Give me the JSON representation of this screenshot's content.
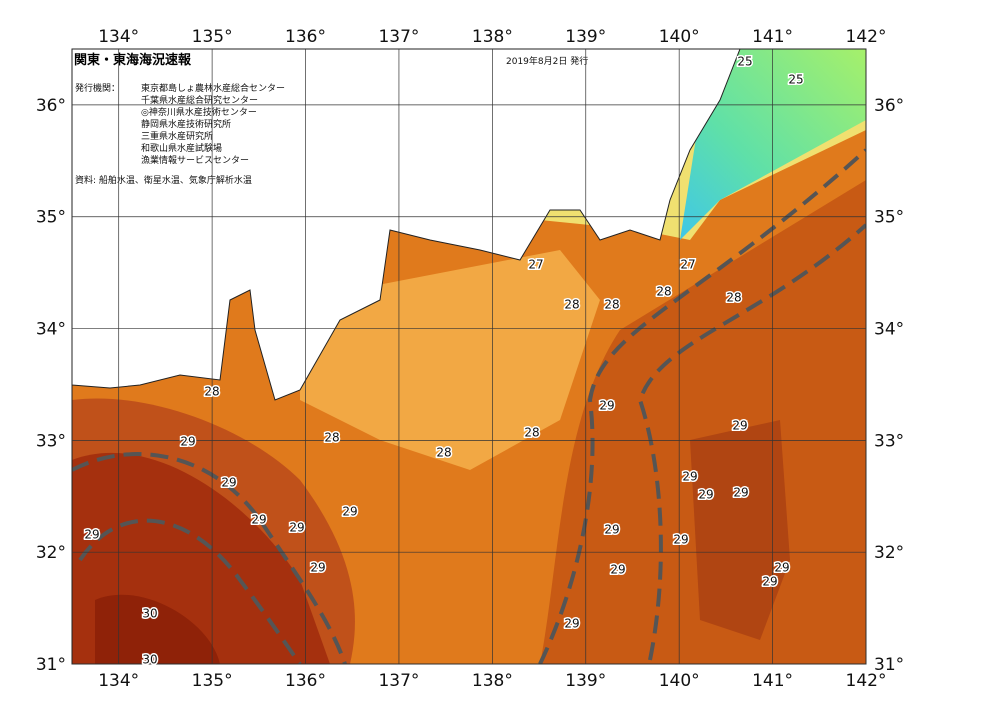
{
  "header": {
    "title": "関東・東海海況速報",
    "date": "2019年8月2日 発行",
    "issuer_label": "発行機関：",
    "issuers": [
      "東京都島しょ農林水産総合センター",
      "千葉県水産総合研究センター",
      "◎神奈川県水産技術センター",
      "静岡県水産技術研究所",
      "三重県水産研究所",
      "和歌山県水産試験場",
      "漁業情報サービスセンター"
    ],
    "source": "資料: 船舶水温、衛星水温、気象庁解析水温"
  },
  "map": {
    "lon_ticks": [
      {
        "value": 134,
        "label": "134°"
      },
      {
        "value": 135,
        "label": "135°"
      },
      {
        "value": 136,
        "label": "136°"
      },
      {
        "value": 137,
        "label": "137°"
      },
      {
        "value": 138,
        "label": "138°"
      },
      {
        "value": 139,
        "label": "139°"
      },
      {
        "value": 140,
        "label": "140°"
      },
      {
        "value": 141,
        "label": "141°"
      },
      {
        "value": 142,
        "label": "142°"
      }
    ],
    "lat_ticks": [
      {
        "value": 31,
        "label": "31°"
      },
      {
        "value": 32,
        "label": "32°"
      },
      {
        "value": 33,
        "label": "33°"
      },
      {
        "value": 34,
        "label": "34°"
      },
      {
        "value": 35,
        "label": "35°"
      },
      {
        "value": 36,
        "label": "36°"
      }
    ],
    "lon_range": [
      133.5,
      142
    ],
    "lat_range": [
      31,
      36.5
    ],
    "contour_labels": [
      25,
      25,
      27,
      27,
      28,
      28,
      28,
      28,
      28,
      29,
      28,
      28,
      28,
      29,
      29,
      29,
      29,
      29,
      29,
      29,
      29,
      29,
      29,
      29,
      29,
      29,
      29,
      29,
      29,
      29,
      30,
      30
    ]
  }
}
